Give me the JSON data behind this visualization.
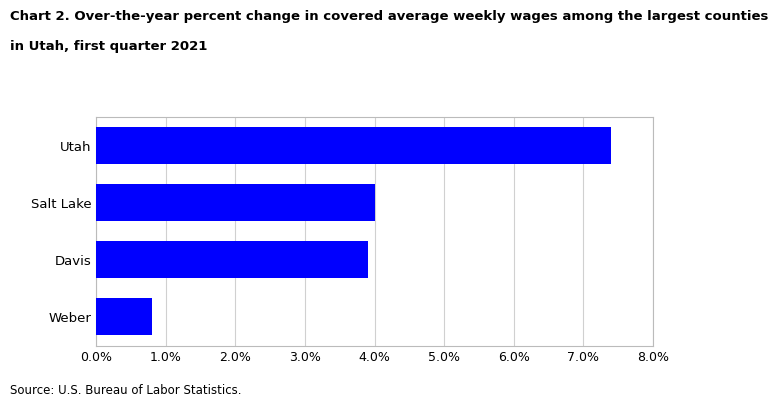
{
  "title_line1": "Chart 2. Over-the-year percent change in covered average weekly wages among the largest counties",
  "title_line2": "in Utah, first quarter 2021",
  "categories": [
    "Weber",
    "Davis",
    "Salt Lake",
    "Utah"
  ],
  "values": [
    0.008,
    0.039,
    0.04,
    0.074
  ],
  "bar_color": "#0000FF",
  "xlim": [
    0,
    0.08
  ],
  "xticks": [
    0.0,
    0.01,
    0.02,
    0.03,
    0.04,
    0.05,
    0.06,
    0.07,
    0.08
  ],
  "source": "Source: U.S. Bureau of Labor Statistics.",
  "background_color": "#ffffff",
  "grid_color": "#d0d0d0",
  "title_fontsize": 9.5,
  "label_fontsize": 9.5,
  "tick_fontsize": 9,
  "source_fontsize": 8.5,
  "bar_height": 0.65
}
